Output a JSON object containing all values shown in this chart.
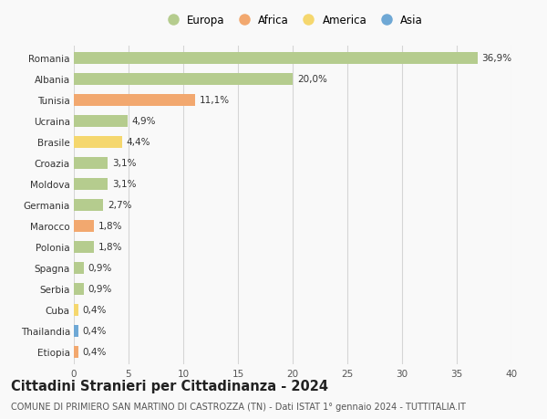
{
  "title": "Cittadini Stranieri per Cittadinanza - 2024",
  "subtitle": "COMUNE DI PRIMIERO SAN MARTINO DI CASTROZZA (TN) - Dati ISTAT 1° gennaio 2024 - TUTTITALIA.IT",
  "countries": [
    "Romania",
    "Albania",
    "Tunisia",
    "Ucraina",
    "Brasile",
    "Croazia",
    "Moldova",
    "Germania",
    "Marocco",
    "Polonia",
    "Spagna",
    "Serbia",
    "Cuba",
    "Thailandia",
    "Etiopia"
  ],
  "values": [
    36.9,
    20.0,
    11.1,
    4.9,
    4.4,
    3.1,
    3.1,
    2.7,
    1.8,
    1.8,
    0.9,
    0.9,
    0.4,
    0.4,
    0.4
  ],
  "labels": [
    "36,9%",
    "20,0%",
    "11,1%",
    "4,9%",
    "4,4%",
    "3,1%",
    "3,1%",
    "2,7%",
    "1,8%",
    "1,8%",
    "0,9%",
    "0,9%",
    "0,4%",
    "0,4%",
    "0,4%"
  ],
  "continents": [
    "Europa",
    "Europa",
    "Africa",
    "Europa",
    "America",
    "Europa",
    "Europa",
    "Europa",
    "Africa",
    "Europa",
    "Europa",
    "Europa",
    "America",
    "Asia",
    "Africa"
  ],
  "continent_colors": {
    "Europa": "#b5cc8e",
    "Africa": "#f2a86f",
    "America": "#f5d76e",
    "Asia": "#6fa8d5"
  },
  "legend_items": [
    "Europa",
    "Africa",
    "America",
    "Asia"
  ],
  "legend_colors": [
    "#b5cc8e",
    "#f2a86f",
    "#f5d76e",
    "#6fa8d5"
  ],
  "xlim": [
    0,
    40
  ],
  "xticks": [
    0,
    5,
    10,
    15,
    20,
    25,
    30,
    35,
    40
  ],
  "background_color": "#f9f9f9",
  "grid_color": "#d5d5d5",
  "bar_height": 0.55,
  "title_fontsize": 10.5,
  "subtitle_fontsize": 7,
  "label_fontsize": 7.5,
  "tick_fontsize": 7.5,
  "legend_fontsize": 8.5
}
